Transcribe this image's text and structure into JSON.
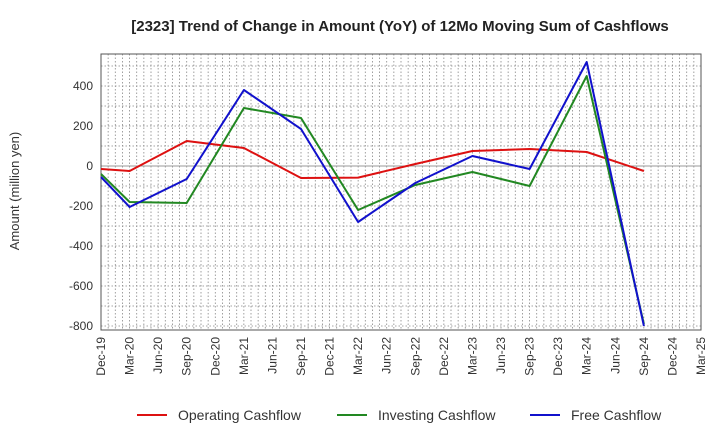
{
  "chart_data": {
    "type": "line",
    "title": "[2323]  Trend of Change in Amount (YoY) of 12Mo Moving Sum of Cashflows",
    "xlabel": "",
    "ylabel": "Amount (million yen)",
    "ylim": [
      -820,
      560
    ],
    "yticks": [
      400,
      200,
      0,
      -200,
      -400,
      -600,
      -800
    ],
    "ytick_labels": [
      "400",
      "200",
      "0",
      "-200",
      "-400",
      "-600",
      "-800"
    ],
    "categories": [
      "Dec-19",
      "Mar-20",
      "Jun-20",
      "Sep-20",
      "Dec-20",
      "Mar-21",
      "Jun-21",
      "Sep-21",
      "Dec-21",
      "Mar-22",
      "Jun-22",
      "Sep-22",
      "Dec-22",
      "Mar-23",
      "Jun-23",
      "Sep-23",
      "Dec-23",
      "Mar-24",
      "Jun-24",
      "Sep-24",
      "Dec-24",
      "Mar-25"
    ],
    "legend_position": "bottom",
    "grid": true,
    "series": [
      {
        "name": "Operating Cashflow",
        "color": "#dd1111",
        "values": [
          -15,
          -25,
          null,
          125,
          null,
          90,
          null,
          -60,
          null,
          -58,
          null,
          10,
          null,
          75,
          null,
          85,
          null,
          70,
          null,
          -25,
          null,
          null
        ]
      },
      {
        "name": "Investing Cashflow",
        "color": "#228822",
        "values": [
          -40,
          -180,
          null,
          -185,
          null,
          290,
          null,
          240,
          null,
          -220,
          null,
          -95,
          null,
          -30,
          null,
          -100,
          null,
          450,
          null,
          -790,
          null,
          null
        ]
      },
      {
        "name": "Free Cashflow",
        "color": "#1111cc",
        "values": [
          -55,
          -205,
          null,
          -65,
          null,
          380,
          null,
          185,
          null,
          -280,
          null,
          -85,
          null,
          50,
          null,
          -15,
          null,
          520,
          null,
          -800,
          null,
          null
        ]
      }
    ]
  }
}
